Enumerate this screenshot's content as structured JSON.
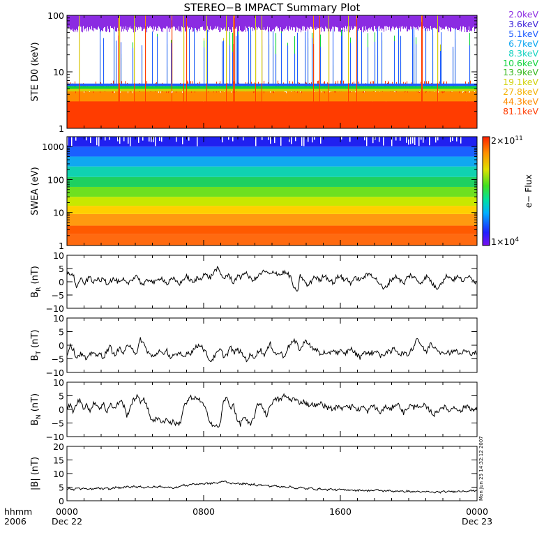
{
  "chart_data": {
    "title": "STEREO−B IMPACT Summary Plot",
    "panels": [
      {
        "id": "ste",
        "type": "area",
        "ylabel": "STE D0 (keV)",
        "scale": "log",
        "ylim": [
          1,
          100
        ],
        "yticks": [
          "1",
          "10",
          "100"
        ],
        "series": [
          {
            "name": "2.0keV",
            "color": "#8b2be2"
          },
          {
            "name": "3.6keV",
            "color": "#3a1fd8"
          },
          {
            "name": "5.1keV",
            "color": "#1e5cff"
          },
          {
            "name": "6.7keV",
            "color": "#0aa5f0"
          },
          {
            "name": "8.3keV",
            "color": "#14d2c0"
          },
          {
            "name": "10.6keV",
            "color": "#0fd23c"
          },
          {
            "name": "13.9keV",
            "color": "#37b81e"
          },
          {
            "name": "19.1keV",
            "color": "#d2d20a"
          },
          {
            "name": "27.8keV",
            "color": "#f5b40a"
          },
          {
            "name": "44.3keV",
            "color": "#ff8c00"
          },
          {
            "name": "81.1keV",
            "color": "#ff3c00"
          }
        ]
      },
      {
        "id": "swea",
        "type": "heatmap",
        "ylabel": "SWEA (eV)",
        "scale": "log",
        "ylim": [
          1,
          2000
        ],
        "yticks": [
          "1",
          "10",
          "100",
          "1000"
        ],
        "colorbar": {
          "label": "e− Flux",
          "max_label": "2×10",
          "max_exp": "11",
          "min_label": "1×10",
          "min_exp": "4"
        }
      },
      {
        "id": "br",
        "type": "line",
        "ylabel": "B",
        "sub": "R",
        "unit": " (nT)",
        "ylim": [
          -10,
          10
        ],
        "yticks": [
          "−10",
          "−5",
          "0",
          "5",
          "10"
        ]
      },
      {
        "id": "bt",
        "type": "line",
        "ylabel": "B",
        "sub": "T",
        "unit": " (nT)",
        "ylim": [
          -10,
          10
        ],
        "yticks": [
          "−10",
          "−5",
          "0",
          "5",
          "10"
        ]
      },
      {
        "id": "bn",
        "type": "line",
        "ylabel": "B",
        "sub": "N",
        "unit": " (nT)",
        "ylim": [
          -10,
          10
        ],
        "yticks": [
          "−10",
          "−5",
          "0",
          "5",
          "10"
        ]
      },
      {
        "id": "bmag",
        "type": "line",
        "ylabel": "|B| (nT)",
        "ylim": [
          0,
          20
        ],
        "yticks": [
          "0",
          "5",
          "10",
          "15",
          "20"
        ]
      }
    ],
    "x": {
      "range_hours": [
        0,
        24
      ],
      "ticks": [
        {
          "hour": 0,
          "label": "0000",
          "date": "Dec 22"
        },
        {
          "hour": 8,
          "label": "0800",
          "date": ""
        },
        {
          "hour": 16,
          "label": "1600",
          "date": ""
        },
        {
          "hour": 24,
          "label": "0000",
          "date": "Dec 23"
        }
      ]
    },
    "field_traces": {
      "br": [
        3.5,
        3.2,
        2.0,
        -2.5,
        1.5,
        -1.0,
        0.5,
        2.0,
        -0.5,
        1.2,
        0.0,
        1.8,
        -0.8,
        0.5,
        1.0,
        0.2,
        -0.5,
        0.8,
        -1.2,
        0.5,
        1.5,
        2.5,
        0.0,
        -1.5,
        0.5,
        1.0,
        -0.5,
        0.2,
        1.8,
        0.8,
        -1.0,
        0.5,
        1.0,
        0.0,
        -0.8,
        1.2,
        2.0,
        0.5,
        -0.5,
        1.5,
        1.0,
        3.0,
        2.2,
        1.5,
        3.5,
        5.2,
        3.0,
        1.2,
        2.5,
        1.8,
        -0.5,
        2.0,
        1.5,
        3.5,
        2.8,
        1.2,
        0.8,
        1.5,
        3.0,
        3.8,
        3.5,
        2.5,
        4.0,
        3.2,
        2.5,
        3.8,
        3.0,
        2.0,
        -2.0,
        -4.5,
        2.5,
        0.5,
        -1.5,
        -0.5,
        2.0,
        1.5,
        0.0,
        2.8,
        1.5,
        0.5,
        -0.5,
        1.5,
        2.5,
        0.5,
        1.2,
        -0.5,
        0.8,
        1.5,
        0.5,
        1.8,
        2.5,
        3.0,
        2.0,
        0.5,
        -1.0,
        -3.0,
        -1.5,
        0.5,
        1.5,
        2.0,
        0.5,
        -1.0,
        1.5,
        2.5,
        1.8,
        0.5,
        -0.5,
        1.0,
        2.0,
        0.5,
        -1.5,
        -2.5,
        -0.5,
        0.5,
        2.5,
        1.5,
        0.8,
        2.0,
        1.0,
        0.5,
        1.2,
        2.5,
        0.5,
        -0.5
      ],
      "bt": [
        -3.5,
        0.5,
        -2.0,
        -4.5,
        -3.0,
        -4.0,
        -5.5,
        -3.5,
        -2.0,
        -4.5,
        -3.0,
        -4.5,
        -2.0,
        -0.5,
        -3.5,
        -2.5,
        -1.0,
        -3.5,
        -0.5,
        0.5,
        -2.0,
        -3.5,
        2.5,
        0.5,
        -2.0,
        -3.5,
        -4.5,
        -3.0,
        -1.5,
        -4.0,
        -2.0,
        -4.5,
        -3.5,
        -4.0,
        -3.0,
        -4.5,
        -2.5,
        -3.0,
        -1.5,
        -0.5,
        0.5,
        -1.5,
        -3.5,
        -6.0,
        -4.5,
        -3.0,
        -1.5,
        -4.0,
        -3.5,
        -0.5,
        -3.0,
        -1.5,
        -2.5,
        -4.0,
        -5.5,
        -3.5,
        -4.5,
        -3.0,
        -1.5,
        -3.5,
        -2.0,
        0.5,
        -2.0,
        -3.5,
        -2.5,
        -4.5,
        -1.5,
        0.5,
        1.5,
        0.5,
        -2.0,
        1.0,
        1.5,
        0.0,
        -2.0,
        -1.5,
        -3.5,
        -2.5,
        -4.0,
        -2.5,
        -1.5,
        -3.0,
        -2.0,
        -3.5,
        -2.5,
        -1.0,
        -2.5,
        -3.5,
        -4.5,
        -2.0,
        -3.5,
        -2.5,
        -3.0,
        -1.5,
        -4.5,
        -3.5,
        -2.0,
        -3.0,
        -1.0,
        -2.0,
        -3.5,
        -2.5,
        -4.0,
        -2.0,
        -0.5,
        3.0,
        0.5,
        -1.5,
        -2.5,
        1.0,
        -0.5,
        -1.0,
        -2.5,
        -3.5,
        -2.0,
        -3.0,
        -1.5,
        -2.5,
        -3.5,
        -2.0,
        -2.5,
        -3.0,
        -2.5,
        -3.0
      ],
      "bn": [
        0.5,
        1.5,
        -1.0,
        2.5,
        3.5,
        0.5,
        2.0,
        -1.5,
        3.0,
        1.5,
        0.5,
        2.0,
        -1.0,
        2.5,
        0.0,
        1.5,
        3.5,
        1.5,
        -2.5,
        1.0,
        3.5,
        5.0,
        2.5,
        4.5,
        1.0,
        -3.0,
        -4.0,
        -3.5,
        -4.0,
        -4.5,
        -3.5,
        -5.0,
        -4.5,
        -5.5,
        -5.0,
        1.0,
        2.5,
        4.5,
        3.5,
        4.5,
        3.0,
        1.5,
        -1.5,
        -4.5,
        -6.0,
        -6.5,
        -5.5,
        3.5,
        4.0,
        0.5,
        2.0,
        -4.0,
        -5.5,
        -2.5,
        -4.5,
        -6.0,
        -3.0,
        1.0,
        2.5,
        0.0,
        -2.5,
        2.0,
        3.0,
        4.0,
        3.5,
        5.0,
        4.5,
        3.5,
        4.0,
        3.0,
        2.5,
        3.0,
        2.0,
        1.5,
        2.0,
        1.0,
        2.5,
        1.5,
        0.5,
        1.0,
        -0.5,
        1.5,
        0.0,
        1.0,
        2.0,
        0.5,
        1.5,
        -0.5,
        0.5,
        1.0,
        -1.0,
        0.5,
        1.5,
        0.0,
        -1.5,
        0.5,
        1.0,
        -0.5,
        1.5,
        2.0,
        1.0,
        -1.5,
        0.5,
        1.5,
        0.5,
        2.0,
        0.0,
        1.5,
        0.5,
        -0.5,
        -2.0,
        -1.0,
        0.5,
        1.0,
        0.0,
        -0.5,
        1.0,
        0.5,
        -1.0,
        0.5,
        1.5,
        0.5,
        -0.5,
        0.0
      ],
      "bmag": [
        4.2,
        4.5,
        4.0,
        4.8,
        4.3,
        4.6,
        4.1,
        4.4,
        4.2,
        4.7,
        4.5,
        4.3,
        4.6,
        4.2,
        4.8,
        5.0,
        4.6,
        4.9,
        5.2,
        4.7,
        5.5,
        5.0,
        5.3,
        4.8,
        5.1,
        4.7,
        5.2,
        4.9,
        5.4,
        5.0,
        4.8,
        5.2,
        4.6,
        5.0,
        5.3,
        5.8,
        5.5,
        6.0,
        6.3,
        5.9,
        6.4,
        6.1,
        6.5,
        6.2,
        6.7,
        6.4,
        6.8,
        7.3,
        6.9,
        6.5,
        6.2,
        6.6,
        6.0,
        6.4,
        6.1,
        5.8,
        6.2,
        5.6,
        5.9,
        5.5,
        5.8,
        5.2,
        5.6,
        5.3,
        5.0,
        5.4,
        4.9,
        5.2,
        4.8,
        4.5,
        4.9,
        4.6,
        4.3,
        4.7,
        4.4,
        4.1,
        4.5,
        4.2,
        4.0,
        4.3,
        4.1,
        3.9,
        4.2,
        4.0,
        3.8,
        4.1,
        3.9,
        3.7,
        4.0,
        3.8,
        3.6,
        3.9,
        3.7,
        4.0,
        3.8,
        3.5,
        3.8,
        3.6,
        3.4,
        3.7,
        3.5,
        3.3,
        3.6,
        3.4,
        3.2,
        3.5,
        3.3,
        3.1,
        3.4,
        3.2,
        3.0,
        3.3,
        3.1,
        3.4,
        3.2,
        3.5,
        3.3,
        3.6,
        3.4,
        3.7,
        3.5,
        3.8,
        3.6,
        3.9
      ]
    },
    "grid": false,
    "legend": "right"
  },
  "footer": {
    "line1": "hhmm",
    "line2": "2006",
    "stamp": "Mon Jun 25 14:32:12 2007"
  }
}
